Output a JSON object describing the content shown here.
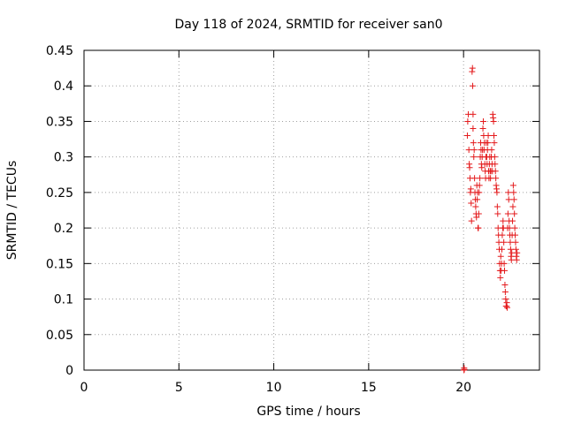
{
  "chart_data": {
    "type": "scatter",
    "title": "Day 118 of 2024, SRMTID for receiver san0",
    "xlabel": "GPS time / hours",
    "ylabel": "SRMTID / TECUs",
    "xlim": [
      0,
      24
    ],
    "ylim": [
      0,
      0.45
    ],
    "xticks": [
      0,
      5,
      10,
      15,
      20
    ],
    "xtick_labels": [
      "0",
      "5",
      "10",
      "15",
      "20"
    ],
    "yticks": [
      0,
      0.05,
      0.1,
      0.15,
      0.2,
      0.25,
      0.3,
      0.35,
      0.4,
      0.45
    ],
    "ytick_labels": [
      "0",
      "0.05",
      "0.1",
      "0.15",
      "0.2",
      "0.25",
      "0.3",
      "0.35",
      "0.4",
      "0.45"
    ],
    "grid": true,
    "marker": "plus",
    "marker_color": "#e41a1c",
    "series": [
      {
        "points": [
          [
            20.02,
            0.0
          ],
          [
            20.03,
            0.003
          ],
          [
            20.04,
            0.001
          ],
          [
            20.2,
            0.33
          ],
          [
            20.22,
            0.35
          ],
          [
            20.25,
            0.36
          ],
          [
            20.28,
            0.31
          ],
          [
            20.3,
            0.29
          ],
          [
            20.32,
            0.285
          ],
          [
            20.34,
            0.27
          ],
          [
            20.36,
            0.25
          ],
          [
            20.38,
            0.255
          ],
          [
            20.4,
            0.235
          ],
          [
            20.42,
            0.21
          ],
          [
            20.45,
            0.42
          ],
          [
            20.47,
            0.425
          ],
          [
            20.48,
            0.4
          ],
          [
            20.5,
            0.36
          ],
          [
            20.5,
            0.34
          ],
          [
            20.52,
            0.32
          ],
          [
            20.54,
            0.3
          ],
          [
            20.56,
            0.31
          ],
          [
            20.58,
            0.27
          ],
          [
            20.6,
            0.25
          ],
          [
            20.62,
            0.24
          ],
          [
            20.64,
            0.23
          ],
          [
            20.66,
            0.22
          ],
          [
            20.68,
            0.215
          ],
          [
            20.7,
            0.26
          ],
          [
            20.72,
            0.24
          ],
          [
            20.74,
            0.25
          ],
          [
            20.76,
            0.2
          ],
          [
            20.78,
            0.2
          ],
          [
            20.8,
            0.22
          ],
          [
            20.82,
            0.25
          ],
          [
            20.84,
            0.26
          ],
          [
            20.86,
            0.27
          ],
          [
            20.88,
            0.3
          ],
          [
            20.9,
            0.32
          ],
          [
            20.92,
            0.31
          ],
          [
            20.94,
            0.29
          ],
          [
            20.96,
            0.285
          ],
          [
            20.98,
            0.3
          ],
          [
            21.0,
            0.31
          ],
          [
            21.02,
            0.34
          ],
          [
            21.04,
            0.35
          ],
          [
            21.06,
            0.33
          ],
          [
            21.08,
            0.31
          ],
          [
            21.1,
            0.32
          ],
          [
            21.12,
            0.29
          ],
          [
            21.14,
            0.28
          ],
          [
            21.16,
            0.27
          ],
          [
            21.18,
            0.3
          ],
          [
            21.2,
            0.32
          ],
          [
            21.22,
            0.3
          ],
          [
            21.24,
            0.29
          ],
          [
            21.26,
            0.31
          ],
          [
            21.28,
            0.32
          ],
          [
            21.3,
            0.33
          ],
          [
            21.32,
            0.28
          ],
          [
            21.34,
            0.27
          ],
          [
            21.36,
            0.29
          ],
          [
            21.38,
            0.3
          ],
          [
            21.4,
            0.28
          ],
          [
            21.42,
            0.27
          ],
          [
            21.44,
            0.28
          ],
          [
            21.46,
            0.3
          ],
          [
            21.48,
            0.31
          ],
          [
            21.5,
            0.29
          ],
          [
            21.52,
            0.28
          ],
          [
            21.54,
            0.36
          ],
          [
            21.56,
            0.355
          ],
          [
            21.58,
            0.35
          ],
          [
            21.6,
            0.33
          ],
          [
            21.62,
            0.32
          ],
          [
            21.64,
            0.3
          ],
          [
            21.66,
            0.29
          ],
          [
            21.68,
            0.28
          ],
          [
            21.7,
            0.27
          ],
          [
            21.72,
            0.26
          ],
          [
            21.74,
            0.255
          ],
          [
            21.76,
            0.25
          ],
          [
            21.78,
            0.23
          ],
          [
            21.8,
            0.22
          ],
          [
            21.82,
            0.2
          ],
          [
            21.84,
            0.19
          ],
          [
            21.86,
            0.18
          ],
          [
            21.88,
            0.17
          ],
          [
            21.9,
            0.15
          ],
          [
            21.92,
            0.14
          ],
          [
            21.94,
            0.13
          ],
          [
            21.96,
            0.16
          ],
          [
            21.98,
            0.14
          ],
          [
            22.0,
            0.15
          ],
          [
            22.02,
            0.17
          ],
          [
            22.04,
            0.19
          ],
          [
            22.06,
            0.2
          ],
          [
            22.08,
            0.21
          ],
          [
            22.1,
            0.2
          ],
          [
            22.12,
            0.18
          ],
          [
            22.14,
            0.15
          ],
          [
            22.16,
            0.14
          ],
          [
            22.18,
            0.12
          ],
          [
            22.2,
            0.11
          ],
          [
            22.22,
            0.1
          ],
          [
            22.24,
            0.09
          ],
          [
            22.26,
            0.09
          ],
          [
            22.28,
            0.095
          ],
          [
            22.3,
            0.088
          ],
          [
            22.32,
            0.2
          ],
          [
            22.34,
            0.22
          ],
          [
            22.36,
            0.25
          ],
          [
            22.38,
            0.24
          ],
          [
            22.4,
            0.21
          ],
          [
            22.42,
            0.2
          ],
          [
            22.44,
            0.19
          ],
          [
            22.46,
            0.18
          ],
          [
            22.48,
            0.17
          ],
          [
            22.5,
            0.16
          ],
          [
            22.52,
            0.155
          ],
          [
            22.54,
            0.165
          ],
          [
            22.56,
            0.19
          ],
          [
            22.58,
            0.21
          ],
          [
            22.6,
            0.23
          ],
          [
            22.62,
            0.26
          ],
          [
            22.64,
            0.25
          ],
          [
            22.66,
            0.24
          ],
          [
            22.68,
            0.22
          ],
          [
            22.7,
            0.2
          ],
          [
            22.72,
            0.19
          ],
          [
            22.74,
            0.18
          ],
          [
            22.76,
            0.17
          ],
          [
            22.78,
            0.16
          ],
          [
            22.8,
            0.155
          ],
          [
            22.82,
            0.165
          ]
        ]
      }
    ]
  }
}
